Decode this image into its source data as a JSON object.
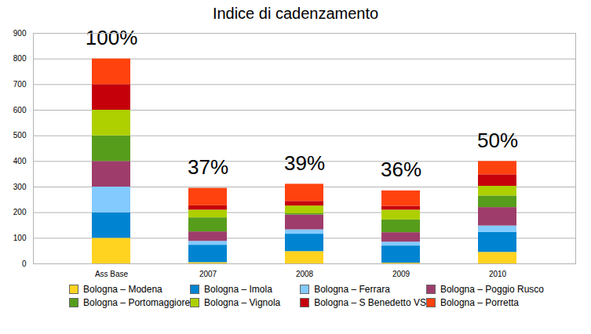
{
  "chart_data": {
    "type": "bar",
    "title": "Indice di cadenzamento",
    "stacked": true,
    "grid": true,
    "legend": "bottom",
    "categories": [
      "Ass Base",
      "2007",
      "2008",
      "2009",
      "2010"
    ],
    "annotations": [
      "100%",
      "37%",
      "39%",
      "36%",
      "50%"
    ],
    "ylim": [
      0,
      900
    ],
    "yticks": [
      0,
      100,
      200,
      300,
      400,
      500,
      600,
      700,
      800,
      900
    ],
    "series": [
      {
        "name": "Bologna – Modena",
        "color": "#ffd320",
        "values": [
          100,
          5,
          48,
          3,
          45
        ]
      },
      {
        "name": "Bologna – Imola",
        "color": "#0084d1",
        "values": [
          100,
          68,
          68,
          67,
          78
        ]
      },
      {
        "name": "Bologna – Ferrara",
        "color": "#83caff",
        "values": [
          100,
          15,
          17,
          15,
          25
        ]
      },
      {
        "name": "Bologna – Poggio Rusco",
        "color": "#9e3d6b",
        "values": [
          100,
          37,
          58,
          37,
          72
        ]
      },
      {
        "name": "Bologna – Portomaggiore",
        "color": "#579d1c",
        "values": [
          100,
          55,
          5,
          50,
          45
        ]
      },
      {
        "name": "Bologna – Vignola",
        "color": "#aecf00",
        "values": [
          100,
          30,
          30,
          38,
          38
        ]
      },
      {
        "name": "Bologna – S Benedetto VS",
        "color": "#c5000b",
        "values": [
          100,
          17,
          18,
          15,
          45
        ]
      },
      {
        "name": "Bologna – Porretta",
        "color": "#ff420e",
        "values": [
          100,
          68,
          67,
          60,
          52
        ]
      }
    ]
  }
}
